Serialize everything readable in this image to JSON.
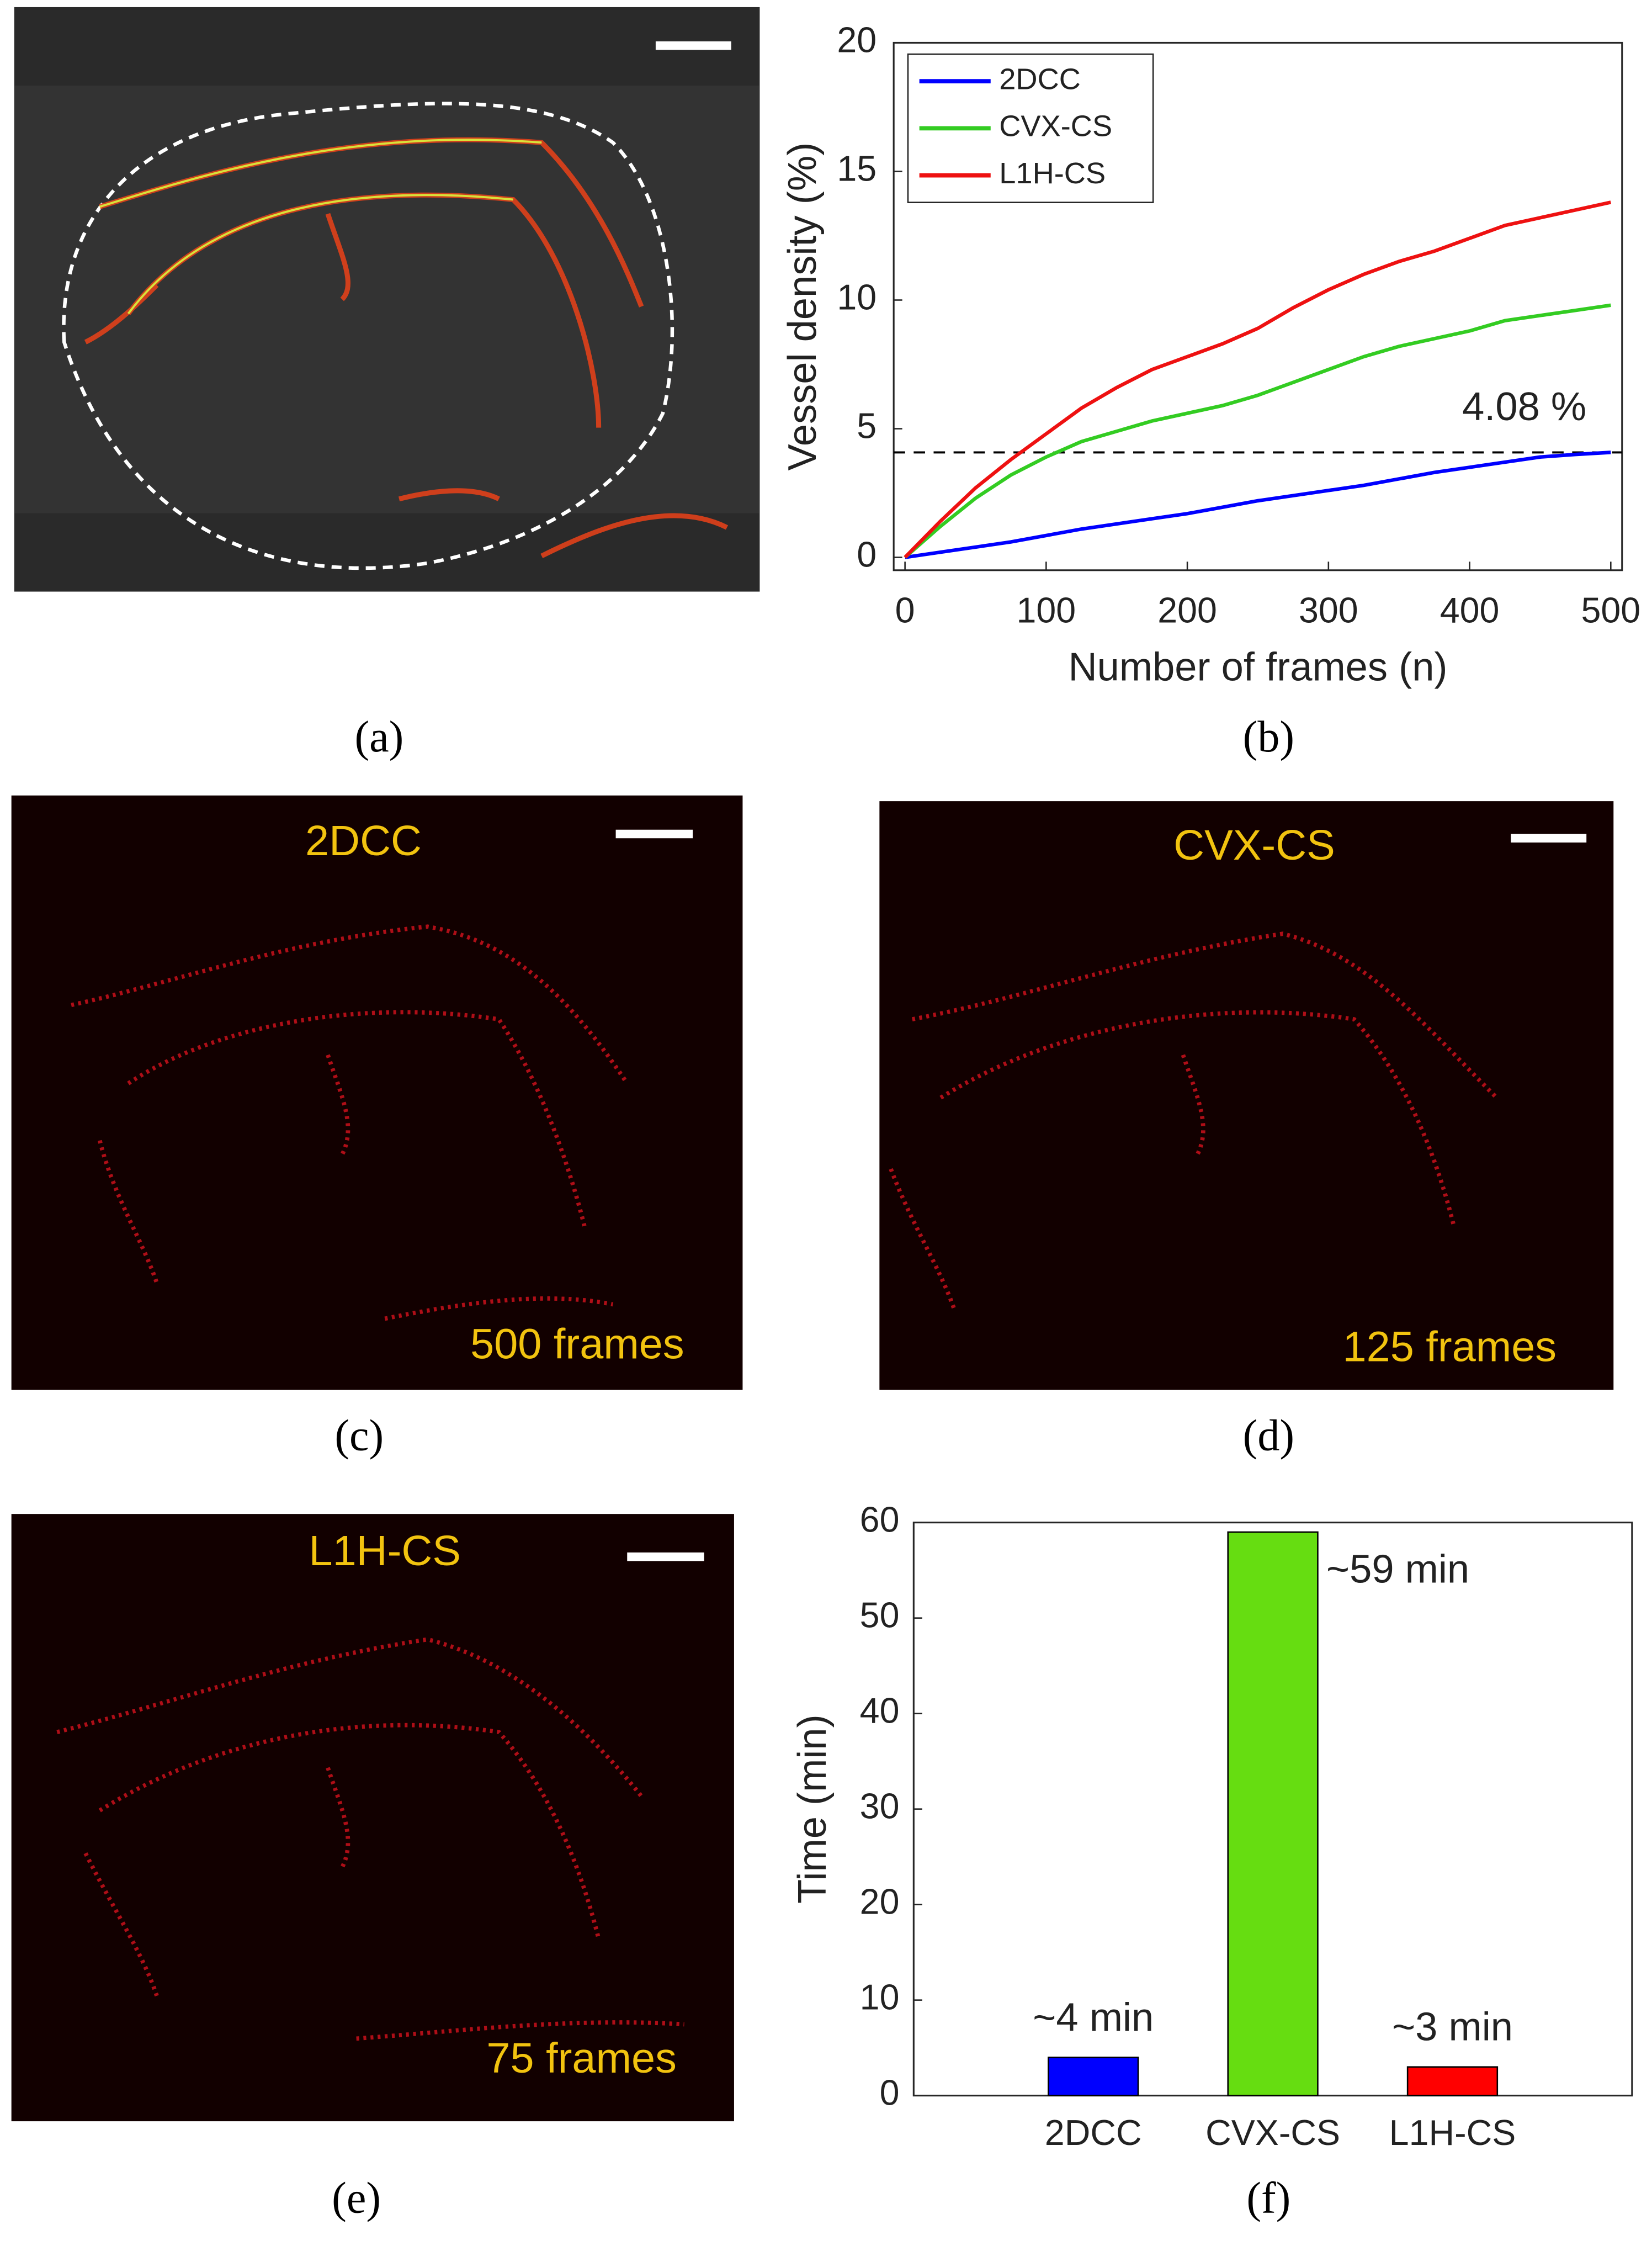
{
  "chart_data": [
    {
      "type": "line",
      "panel_label": "(b)",
      "xlabel": "Number of frames (n)",
      "ylabel": "Vessel density (%)",
      "x": [
        0,
        25,
        50,
        75,
        100,
        125,
        150,
        175,
        200,
        225,
        250,
        275,
        300,
        325,
        350,
        375,
        400,
        425,
        450,
        475,
        500
      ],
      "series": [
        {
          "name": "2DCC",
          "color": "#0000ff",
          "values": [
            0,
            0.2,
            0.4,
            0.6,
            0.85,
            1.1,
            1.3,
            1.5,
            1.7,
            1.95,
            2.2,
            2.4,
            2.6,
            2.8,
            3.05,
            3.3,
            3.5,
            3.7,
            3.9,
            4.0,
            4.08
          ]
        },
        {
          "name": "CVX-CS",
          "color": "#33cc22",
          "values": [
            0,
            1.2,
            2.3,
            3.2,
            3.9,
            4.5,
            4.9,
            5.3,
            5.6,
            5.9,
            6.3,
            6.8,
            7.3,
            7.8,
            8.2,
            8.5,
            8.8,
            9.2,
            9.4,
            9.6,
            9.8
          ]
        },
        {
          "name": "L1H-CS",
          "color": "#ee1111",
          "values": [
            0,
            1.4,
            2.7,
            3.8,
            4.8,
            5.8,
            6.6,
            7.3,
            7.8,
            8.3,
            8.9,
            9.7,
            10.4,
            11.0,
            11.5,
            11.9,
            12.4,
            12.9,
            13.2,
            13.5,
            13.8
          ]
        }
      ],
      "reference_line": {
        "value": 4.08,
        "label": "4.08 %"
      },
      "xlim": [
        -8,
        508
      ],
      "xticks": [
        0,
        100,
        200,
        300,
        400,
        500
      ],
      "ylim": [
        -0.5,
        20
      ],
      "yticks": [
        0,
        5,
        10,
        15,
        20
      ],
      "legend": "upper left"
    },
    {
      "type": "bar",
      "panel_label": "(f)",
      "ylabel": "Time (min)",
      "categories": [
        "2DCC",
        "CVX-CS",
        "L1H-CS"
      ],
      "values": [
        4,
        59,
        3
      ],
      "value_labels": [
        "~4 min",
        "~59 min",
        "~3 min"
      ],
      "colors": [
        "#0000ff",
        "#66dd11",
        "#ff0000"
      ],
      "ylim": [
        0,
        60
      ],
      "yticks": [
        0,
        10,
        20,
        30,
        40,
        50,
        60
      ]
    }
  ],
  "panels": [
    {
      "label": "(a)"
    },
    {
      "label": "(c)",
      "title": "2DCC",
      "caption": "500 frames"
    },
    {
      "label": "(d)",
      "title": "CVX-CS",
      "caption": "125 frames"
    },
    {
      "label": "(e)",
      "title": "L1H-CS",
      "caption": "75 frames"
    }
  ]
}
